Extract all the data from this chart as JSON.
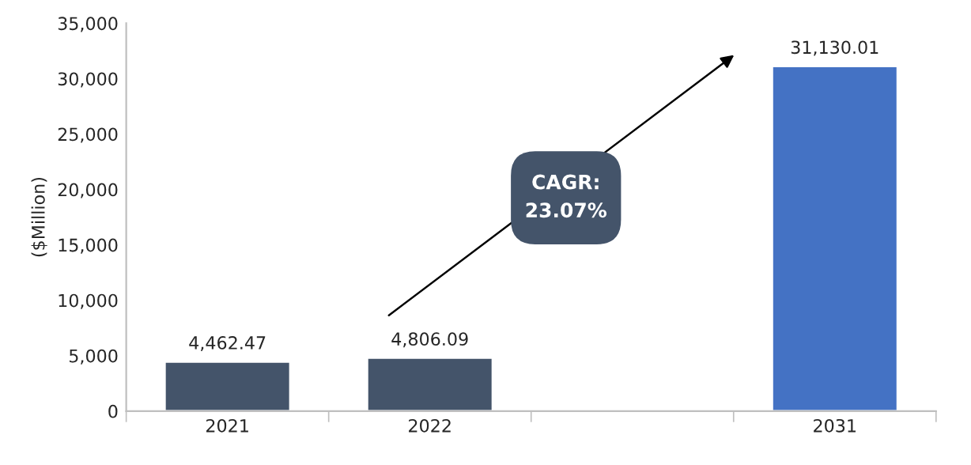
{
  "chart_data": {
    "type": "bar",
    "ylabel": "($Million)",
    "categories": [
      "2021",
      "2022",
      null,
      "2031"
    ],
    "values": [
      4462.47,
      4806.09,
      null,
      31130.01
    ],
    "colors": [
      "#44546a",
      "#44546a",
      "#44546a",
      "#4472c4"
    ],
    "ylim": [
      0,
      35000
    ],
    "yticks": [
      0,
      {
        "value": 5000,
        "label": "5,000"
      },
      {
        "value": 10000,
        "label": "10,000"
      },
      {
        "value": 15000,
        "label": "15,000"
      },
      {
        "value": 20000,
        "label": "20,000"
      },
      {
        "value": 25000,
        "label": "25,000"
      },
      {
        "value": 30000,
        "label": "30,000"
      },
      {
        "value": 35000,
        "label": "35,000"
      }
    ],
    "value_labels": [
      "4,462.47",
      "4,806.09",
      null,
      "31,130.01"
    ],
    "annotations": [
      "CAGR:\n23.07%"
    ],
    "grid": false,
    "legend": false
  }
}
